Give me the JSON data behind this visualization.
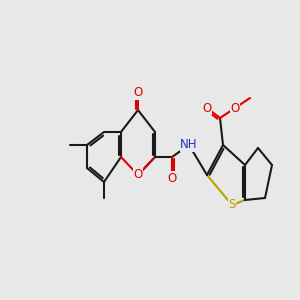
{
  "background_color": "#e8e8e8",
  "bond_color": "#1a1a1a",
  "bond_width": 1.5,
  "atom_colors": {
    "O": "#dd0000",
    "N": "#2233bb",
    "S": "#b8a000",
    "C": "#1a1a1a"
  },
  "figsize": [
    3.0,
    3.0
  ],
  "dpi": 100,
  "font_size": 8.5
}
